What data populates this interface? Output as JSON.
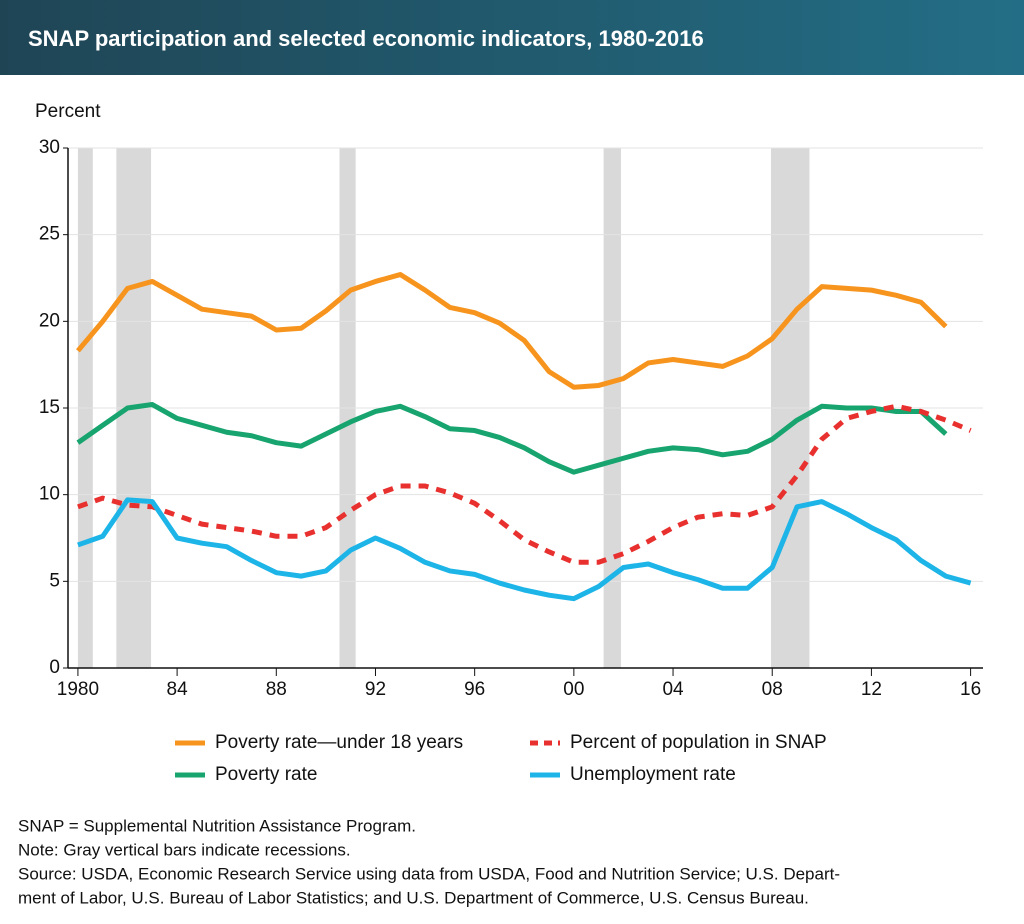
{
  "chart_data": {
    "type": "line",
    "title": "SNAP participation and selected economic indicators, 1980-2016",
    "y_label": "Percent",
    "x": [
      1980,
      1981,
      1982,
      1983,
      1984,
      1985,
      1986,
      1987,
      1988,
      1989,
      1990,
      1991,
      1992,
      1993,
      1994,
      1995,
      1996,
      1997,
      1998,
      1999,
      2000,
      2001,
      2002,
      2003,
      2004,
      2005,
      2006,
      2007,
      2008,
      2009,
      2010,
      2011,
      2012,
      2013,
      2014,
      2015,
      2016
    ],
    "series": [
      {
        "name": "Poverty rate—under 18 years",
        "color": "#f7941d",
        "dashed": false,
        "values": [
          18.3,
          20.0,
          21.9,
          22.3,
          21.5,
          20.7,
          20.5,
          20.3,
          19.5,
          19.6,
          20.6,
          21.8,
          22.3,
          22.7,
          21.8,
          20.8,
          20.5,
          19.9,
          18.9,
          17.1,
          16.2,
          16.3,
          16.7,
          17.6,
          17.8,
          17.6,
          17.4,
          18.0,
          19.0,
          20.7,
          22.0,
          21.9,
          21.8,
          21.5,
          21.1,
          19.7,
          null
        ]
      },
      {
        "name": "Poverty rate",
        "color": "#17a46f",
        "dashed": false,
        "values": [
          13.0,
          14.0,
          15.0,
          15.2,
          14.4,
          14.0,
          13.6,
          13.4,
          13.0,
          12.8,
          13.5,
          14.2,
          14.8,
          15.1,
          14.5,
          13.8,
          13.7,
          13.3,
          12.7,
          11.9,
          11.3,
          11.7,
          12.1,
          12.5,
          12.7,
          12.6,
          12.3,
          12.5,
          13.2,
          14.3,
          15.1,
          15.0,
          15.0,
          14.8,
          14.8,
          13.5,
          null
        ]
      },
      {
        "name": "Percent of population in SNAP",
        "color": "#e8312f",
        "dashed": true,
        "values": [
          9.3,
          9.8,
          9.4,
          9.3,
          8.8,
          8.3,
          8.1,
          7.9,
          7.6,
          7.6,
          8.1,
          9.1,
          10.0,
          10.5,
          10.5,
          10.1,
          9.5,
          8.5,
          7.4,
          6.7,
          6.1,
          6.1,
          6.6,
          7.3,
          8.1,
          8.7,
          8.9,
          8.8,
          9.3,
          11.1,
          13.2,
          14.4,
          14.8,
          15.1,
          14.8,
          14.3,
          13.7
        ]
      },
      {
        "name": "Unemployment rate",
        "color": "#1db4e8",
        "dashed": false,
        "values": [
          7.1,
          7.6,
          9.7,
          9.6,
          7.5,
          7.2,
          7.0,
          6.2,
          5.5,
          5.3,
          5.6,
          6.8,
          7.5,
          6.9,
          6.1,
          5.6,
          5.4,
          4.9,
          4.5,
          4.2,
          4.0,
          4.7,
          5.8,
          6.0,
          5.5,
          5.1,
          4.6,
          4.6,
          5.8,
          9.3,
          9.6,
          8.9,
          8.1,
          7.4,
          6.2,
          5.3,
          4.9
        ]
      }
    ],
    "recessions": [
      [
        1980.0,
        1980.6
      ],
      [
        1981.55,
        1982.95
      ],
      [
        1990.55,
        1991.2
      ],
      [
        2001.2,
        2001.9
      ],
      [
        2007.95,
        2009.5
      ]
    ],
    "recession_color": "#d9d9d9",
    "xlim": [
      1979.6,
      2016.5
    ],
    "ylim": [
      0,
      30
    ],
    "xticks": [
      {
        "value": 1980,
        "label": "1980"
      },
      {
        "value": 1984,
        "label": "84"
      },
      {
        "value": 1988,
        "label": "88"
      },
      {
        "value": 1992,
        "label": "92"
      },
      {
        "value": 1996,
        "label": "96"
      },
      {
        "value": 2000,
        "label": "00"
      },
      {
        "value": 2004,
        "label": "04"
      },
      {
        "value": 2008,
        "label": "08"
      },
      {
        "value": 2012,
        "label": "12"
      },
      {
        "value": 2016,
        "label": "16"
      }
    ],
    "yticks": [
      0,
      5,
      10,
      15,
      20,
      25,
      30
    ],
    "grid": true,
    "notes": [
      "SNAP = Supplemental Nutrition Assistance Program.",
      "Note: Gray vertical bars indicate recessions.",
      "Source: USDA, Economic Research Service using data from USDA, Food and Nutrition Service; U.S. Depart-",
      "ment of Labor, U.S. Bureau of Labor Statistics; and U.S. Department of Commerce, U.S. Census Bureau."
    ]
  }
}
